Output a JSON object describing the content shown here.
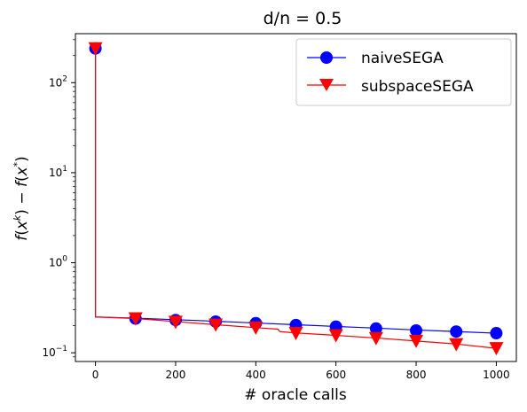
{
  "chart_data": {
    "type": "line",
    "title": "d/n = 0.5",
    "xlabel": "# oracle calls",
    "ylabel": "f(x^k) − f(x^*)",
    "ylabel_parts": {
      "f1": "f",
      "x1": "x",
      "k": "k",
      "mid": ") − ",
      "f2": "f",
      "x2": "x",
      "star": "*",
      "close": ")"
    },
    "x_scale": "linear",
    "y_scale": "log",
    "xlim": [
      -50,
      1050
    ],
    "ylim": [
      0.08,
      350
    ],
    "x_ticks": [
      0,
      200,
      400,
      600,
      800,
      1000
    ],
    "y_ticks": [
      {
        "value": 0.1,
        "base": "10",
        "exp": "−1"
      },
      {
        "value": 1,
        "base": "10",
        "exp": "0"
      },
      {
        "value": 10,
        "base": "10",
        "exp": "1"
      },
      {
        "value": 100,
        "base": "10",
        "exp": "2"
      }
    ],
    "grid": false,
    "legend_position": "top-right",
    "series": [
      {
        "name": "naiveSEGA",
        "color": "#0000ff",
        "marker": "circle",
        "markers_x": [
          0,
          100,
          200,
          300,
          400,
          500,
          600,
          700,
          800,
          900,
          1000
        ],
        "markers_y": [
          240,
          0.24,
          0.231,
          0.222,
          0.213,
          0.203,
          0.195,
          0.186,
          0.177,
          0.172,
          0.165
        ],
        "line": [
          [
            0,
            240
          ],
          [
            0,
            0.25
          ],
          [
            100,
            0.242
          ],
          [
            200,
            0.233
          ],
          [
            300,
            0.224
          ],
          [
            400,
            0.214
          ],
          [
            500,
            0.205
          ],
          [
            600,
            0.196
          ],
          [
            700,
            0.188
          ],
          [
            800,
            0.179
          ],
          [
            900,
            0.172
          ],
          [
            1000,
            0.165
          ]
        ]
      },
      {
        "name": "subspaceSEGA",
        "color": "#ff0000",
        "marker": "triangle-down",
        "markers_x": [
          0,
          100,
          200,
          300,
          400,
          500,
          600,
          700,
          800,
          900,
          1000
        ],
        "markers_y": [
          240,
          0.24,
          0.22,
          0.205,
          0.19,
          0.165,
          0.156,
          0.145,
          0.135,
          0.124,
          0.112
        ],
        "line": [
          [
            0,
            240
          ],
          [
            0,
            0.25
          ],
          [
            100,
            0.24
          ],
          [
            200,
            0.222
          ],
          [
            300,
            0.205
          ],
          [
            400,
            0.19
          ],
          [
            455,
            0.183
          ],
          [
            460,
            0.172
          ],
          [
            500,
            0.166
          ],
          [
            600,
            0.156
          ],
          [
            700,
            0.146
          ],
          [
            800,
            0.135
          ],
          [
            900,
            0.125
          ],
          [
            1000,
            0.112
          ]
        ]
      }
    ]
  }
}
